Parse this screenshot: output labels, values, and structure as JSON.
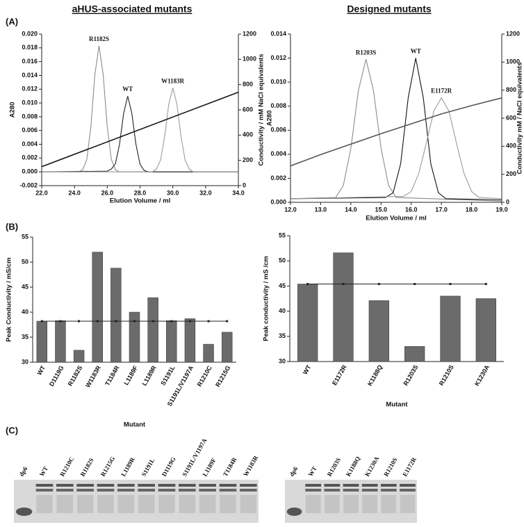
{
  "chart_data": [
    {
      "type": "line",
      "panel": "(A)",
      "title": "aHUS-associated mutants",
      "x_label": "Elution Volume / ml",
      "y_label": "A280",
      "y2_label": "Conductivity / mM NaCl equivalents",
      "xlim": [
        22,
        34
      ],
      "xticks": [
        {
          "value": 22,
          "label": "22.0"
        },
        {
          "value": 24,
          "label": "24.0"
        },
        {
          "value": 26,
          "label": "26.0"
        },
        {
          "value": 28,
          "label": "28.0"
        },
        {
          "value": 30,
          "label": "30.0"
        },
        {
          "value": 32,
          "label": "32.0"
        },
        {
          "value": 34,
          "label": "34.0"
        }
      ],
      "ylim": [
        -0.002,
        0.02
      ],
      "yticks": [
        {
          "value": -0.002,
          "label": "-0.002"
        },
        {
          "value": 0,
          "label": "0.000"
        },
        {
          "value": 0.002,
          "label": "0.002"
        },
        {
          "value": 0.004,
          "label": "0.004"
        },
        {
          "value": 0.006,
          "label": "0.006"
        },
        {
          "value": 0.008,
          "label": "0.008"
        },
        {
          "value": 0.01,
          "label": "0.010"
        },
        {
          "value": 0.012,
          "label": "0.012"
        },
        {
          "value": 0.014,
          "label": "0.014"
        },
        {
          "value": 0.016,
          "label": "0.016"
        },
        {
          "value": 0.018,
          "label": "0.018"
        },
        {
          "value": 0.02,
          "label": "0.020"
        }
      ],
      "y2lim": [
        0,
        1200
      ],
      "y2ticks": [
        0,
        200,
        400,
        600,
        800,
        1000,
        1200
      ],
      "series": [
        {
          "name": "R1182S",
          "color": "#8a8a8a",
          "x": [
            22,
            24.25,
            24.5,
            24.75,
            25,
            25.25,
            25.5,
            25.75,
            26,
            26.25,
            26.5,
            26.75,
            34
          ],
          "values": [
            0,
            0,
            0.0003,
            0.0018,
            0.0066,
            0.0142,
            0.0183,
            0.0142,
            0.0066,
            0.0018,
            0.0003,
            0,
            0
          ]
        },
        {
          "name": "WT",
          "color": "#222222",
          "x": [
            22,
            26,
            26.25,
            26.5,
            26.75,
            27,
            27.25,
            27.5,
            27.75,
            28,
            28.25,
            28.5,
            34
          ],
          "values": [
            0,
            0.0001,
            0.0004,
            0.0012,
            0.004,
            0.0085,
            0.011,
            0.0085,
            0.004,
            0.0011,
            0.0002,
            0,
            0
          ]
        },
        {
          "name": "W1183R",
          "color": "#9a9a9a",
          "x": [
            22,
            28.75,
            29,
            29.25,
            29.5,
            29.75,
            30,
            30.25,
            30.5,
            30.75,
            31,
            31.25,
            34
          ],
          "values": [
            0,
            0,
            0.0004,
            0.0017,
            0.0051,
            0.0098,
            0.0122,
            0.0098,
            0.0051,
            0.0017,
            0.0004,
            0,
            0
          ]
        },
        {
          "axis": "y2",
          "color": "#111111",
          "x": [
            22,
            34
          ],
          "values": [
            150,
            740
          ]
        }
      ]
    },
    {
      "type": "line",
      "title": "Designed mutants",
      "x_label": "Elution Volume / ml",
      "y_label": "A280",
      "y2_label": "Conductivity mM / NaCl equivalents",
      "xlim": [
        12,
        19
      ],
      "xticks": [
        {
          "value": 12,
          "label": "12.0"
        },
        {
          "value": 13,
          "label": "13.0"
        },
        {
          "value": 14,
          "label": "14.0"
        },
        {
          "value": 15,
          "label": "15.0"
        },
        {
          "value": 16,
          "label": "16.0"
        },
        {
          "value": 17,
          "label": "17.0"
        },
        {
          "value": 18,
          "label": "18.0"
        },
        {
          "value": 19,
          "label": "19.0"
        }
      ],
      "ylim": [
        0,
        0.014
      ],
      "yticks": [
        {
          "value": 0,
          "label": "0.000"
        },
        {
          "value": 0.002,
          "label": "0.002"
        },
        {
          "value": 0.004,
          "label": "0.004"
        },
        {
          "value": 0.006,
          "label": "0.006"
        },
        {
          "value": 0.008,
          "label": "0.008"
        },
        {
          "value": 0.01,
          "label": "0.010"
        },
        {
          "value": 0.012,
          "label": "0.012"
        },
        {
          "value": 0.014,
          "label": "0.014"
        }
      ],
      "y2lim": [
        0,
        1200
      ],
      "y2ticks": [
        0,
        200,
        400,
        600,
        800,
        1000,
        1200
      ],
      "series": [
        {
          "name": "R1203S",
          "color": "#8a8a8a",
          "x": [
            12,
            13.5,
            13.75,
            14,
            14.25,
            14.5,
            14.75,
            15,
            15.25,
            15.5,
            19
          ],
          "values": [
            0.0003,
            0.0004,
            0.0014,
            0.0045,
            0.0093,
            0.0119,
            0.0093,
            0.0045,
            0.0014,
            0.0004,
            0.0001
          ]
        },
        {
          "name": "WT",
          "color": "#111111",
          "x": [
            12,
            15.15,
            15.4,
            15.65,
            15.9,
            16.15,
            16.4,
            16.65,
            16.9,
            17.15,
            19
          ],
          "values": [
            0.0003,
            0.0004,
            0.0008,
            0.0032,
            0.0087,
            0.012,
            0.0087,
            0.0032,
            0.0008,
            0.0003,
            0.0002
          ]
        },
        {
          "name": "E1172R",
          "color": "#9a9a9a",
          "x": [
            12,
            15.75,
            16,
            16.25,
            16.5,
            16.75,
            17,
            17.25,
            17.5,
            17.75,
            18,
            18.25,
            19
          ],
          "values": [
            0.0003,
            0.0005,
            0.0009,
            0.0024,
            0.0049,
            0.0076,
            0.0087,
            0.0076,
            0.0049,
            0.0024,
            0.0009,
            0.0004,
            0.0003
          ]
        },
        {
          "axis": "y2",
          "color": "#555555",
          "x": [
            12,
            13,
            14,
            15,
            16,
            17,
            18,
            19
          ],
          "values": [
            260,
            340,
            415,
            490,
            560,
            630,
            690,
            745
          ]
        }
      ]
    },
    {
      "type": "bar",
      "panel": "(B)",
      "y_label": "Peak Conductivity / mS/cm",
      "x_label": "Mutant",
      "color": "#6b6b6b",
      "reference_line": 38.2,
      "categories": [
        "WT",
        "D1119G",
        "R1182S",
        "W1183R",
        "T1184R",
        "L1189F",
        "L1189R",
        "S1191L",
        "S1191L/V1197A",
        "R1210C",
        "R1215G"
      ],
      "values": [
        38.2,
        38.3,
        32.4,
        52,
        48.8,
        40,
        42.9,
        38.3,
        38.7,
        33.6,
        36
      ],
      "ylim": [
        30,
        55
      ],
      "yticks": [
        30,
        35,
        40,
        45,
        50,
        55
      ]
    },
    {
      "type": "bar",
      "y_label": "Peak conductivity / mS /cm",
      "x_label": "Mutant",
      "color": "#6b6b6b",
      "reference_line": 45.4,
      "categories": [
        "WT",
        "E1172R",
        "K1188Q",
        "R1203S",
        "R1210S",
        "K1230A"
      ],
      "values": [
        45.4,
        51.6,
        42.1,
        33,
        43,
        42.5
      ],
      "ylim": [
        30,
        55
      ],
      "yticks": [
        30,
        35,
        40,
        45,
        50,
        55
      ]
    }
  ],
  "gels": [
    {
      "panel": "(C)",
      "lanes": [
        "dp6",
        "WT",
        "R1210C",
        "R1182S",
        "R1215G",
        "L1189R",
        "S1191L",
        "D1119G",
        "S1191L/V1197A",
        "L1189F",
        "T1184R",
        "W1183R"
      ]
    },
    {
      "lanes": [
        "dp6",
        "WT",
        "R1203S",
        "K1188Q",
        "K1230A",
        "R1210S",
        "E1172R"
      ]
    }
  ]
}
